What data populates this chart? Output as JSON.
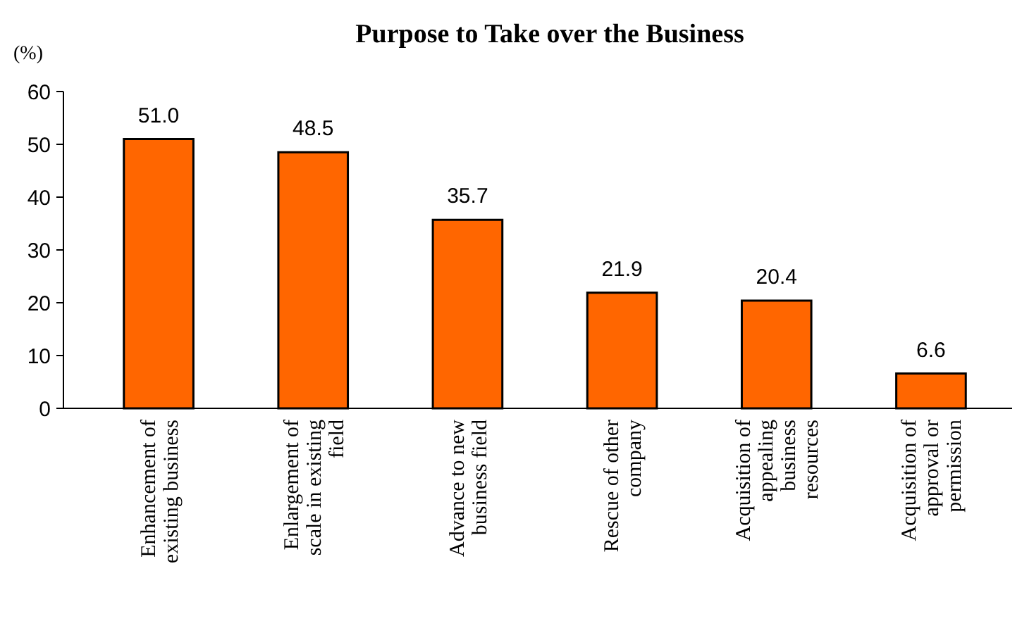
{
  "chart_data": {
    "type": "bar",
    "title": "Purpose to Take over the Business",
    "ylabel": "(%)",
    "categories": [
      "Enhancement of\nexisting business",
      "Enlargement of\nscale in existing\nfield",
      "Advance to new\nbusiness field",
      "Rescue of other\ncompany",
      "Acquisition of\nappealing\nbusiness\nresources",
      "Acquisition of\napproval or\npermission"
    ],
    "values": [
      51.0,
      48.5,
      35.7,
      21.9,
      20.4,
      6.6
    ],
    "value_labels": [
      "51.0",
      "48.5",
      "35.7",
      "21.9",
      "20.4",
      "6.6"
    ],
    "color": "#ff6600",
    "ylim": [
      0,
      60
    ],
    "yticks": [
      0,
      10,
      20,
      30,
      40,
      50,
      60
    ],
    "grid": false
  }
}
